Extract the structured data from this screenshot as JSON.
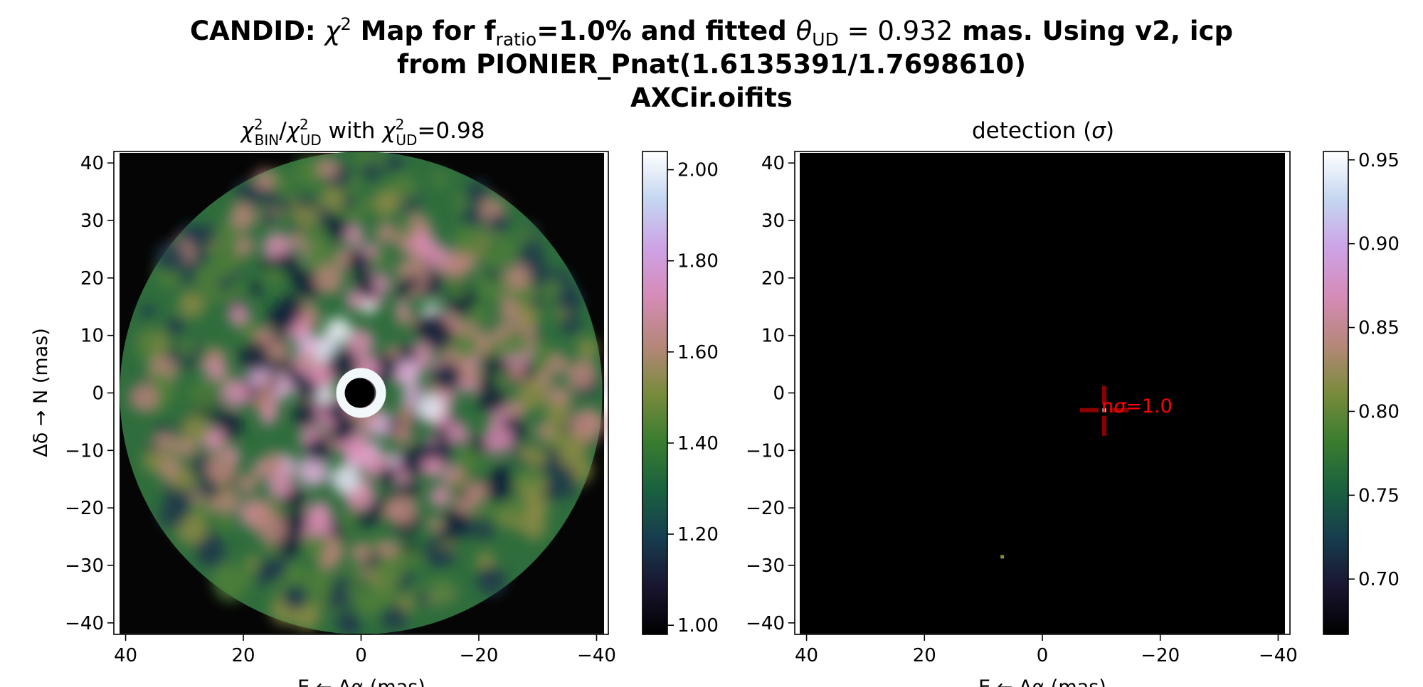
{
  "figure": {
    "title_line1": {
      "a": "CANDID: ",
      "chi": "χ",
      "chi_sup": "2",
      "b": " Map for f",
      "ratio_sub": "ratio",
      "c": "=1.0% and fitted ",
      "theta": "θ",
      "ud_sub": "UD",
      "eq": " = 0.932",
      "d": " mas. Using v2, icp"
    },
    "title_line2": "from PIONIER_Pnat(1.6135391/1.7698610)",
    "title_line3": "AXCir.oifits"
  },
  "chart_data": [
    {
      "type": "heatmap",
      "title": {
        "chi_a": "χ",
        "sup_a": "2",
        "sub_a": "BIN",
        "slash": "/",
        "chi_b": "χ",
        "sup_b": "2",
        "sub_b": "UD",
        "mid": " with ",
        "chi_c": "χ",
        "sup_c": "2",
        "sub_c": "UD",
        "val": "=0.98"
      },
      "xlabel": "E ← Δα (mas)",
      "ylabel": "Δδ → N (mas)",
      "xlim": [
        42,
        -42
      ],
      "ylim": [
        -42,
        42
      ],
      "x_ticks": [
        40,
        20,
        0,
        -20,
        -40
      ],
      "x_tick_labels": [
        "40",
        "20",
        "0",
        "−20",
        "−40"
      ],
      "y_ticks": [
        40,
        30,
        20,
        10,
        0,
        -10,
        -20,
        -30,
        -40
      ],
      "y_tick_labels": [
        "40",
        "30",
        "20",
        "10",
        "0",
        "−10",
        "−20",
        "−30",
        "−40"
      ],
      "map_radius_mas": 41,
      "colormap": "cubehelix",
      "colorbar": {
        "range": [
          0.98,
          2.04
        ],
        "ticks": [
          1.0,
          1.2,
          1.4,
          1.6,
          1.8,
          2.0
        ],
        "tick_labels": [
          "1.00",
          "1.20",
          "1.40",
          "1.60",
          "1.80",
          "2.00"
        ]
      }
    },
    {
      "type": "heatmap",
      "title": {
        "text": "detection (",
        "sigma": "σ",
        "close": ")"
      },
      "xlabel": "E ← Δα (mas)",
      "xlim": [
        42,
        -42
      ],
      "ylim": [
        -42,
        42
      ],
      "x_ticks": [
        40,
        20,
        0,
        -20,
        -40
      ],
      "x_tick_labels": [
        "40",
        "20",
        "0",
        "−20",
        "−40"
      ],
      "y_ticks": [
        40,
        30,
        20,
        10,
        0,
        -10,
        -20,
        -30,
        -40
      ],
      "y_tick_labels": [
        "40",
        "30",
        "20",
        "10",
        "0",
        "−10",
        "−20",
        "−30",
        "−40"
      ],
      "colormap": "cubehelix",
      "detection": {
        "x": -10.5,
        "y": -3.0,
        "label_n": "n",
        "label_sigma": "σ",
        "label_value": "=1.0",
        "marker_color": "#8b0000"
      },
      "faint_pixel": {
        "x": 6.8,
        "y": -28.5
      },
      "colorbar": {
        "range": [
          0.667,
          0.955
        ],
        "ticks": [
          0.7,
          0.75,
          0.8,
          0.85,
          0.9,
          0.95
        ],
        "tick_labels": [
          "0.70",
          "0.75",
          "0.80",
          "0.85",
          "0.90",
          "0.95"
        ]
      }
    }
  ]
}
